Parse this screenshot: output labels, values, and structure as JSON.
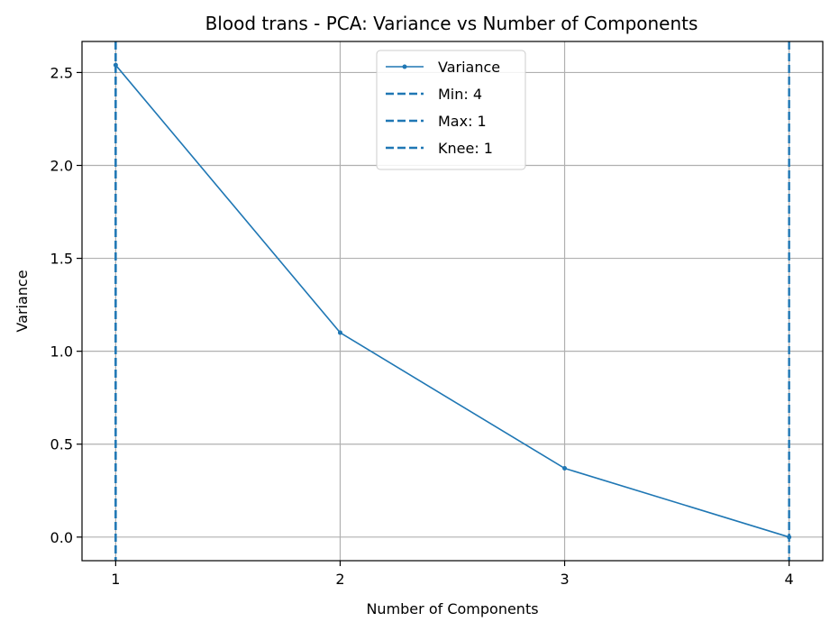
{
  "chart_data": {
    "type": "line",
    "title": "Blood trans - PCA: Variance vs Number of Components",
    "xlabel": "Number of Components",
    "ylabel": "Variance",
    "x": [
      1,
      2,
      3,
      4
    ],
    "series": [
      {
        "name": "Variance",
        "values": [
          2.54,
          1.1,
          0.37,
          0.0
        ]
      }
    ],
    "vlines": [
      {
        "name": "Min: 4",
        "x": 4
      },
      {
        "name": "Max: 1",
        "x": 1
      },
      {
        "name": "Knee: 1",
        "x": 1
      }
    ],
    "xlim": [
      0.85,
      4.15
    ],
    "ylim": [
      -0.127,
      2.667
    ],
    "xticks": [
      "1",
      "2",
      "3",
      "4"
    ],
    "yticks": [
      "0.0",
      "0.5",
      "1.0",
      "1.5",
      "2.0",
      "2.5"
    ],
    "grid": true,
    "legend_position": "top-center",
    "colors": {
      "line": "#1f77b4",
      "grid": "#b0b0b0"
    }
  }
}
